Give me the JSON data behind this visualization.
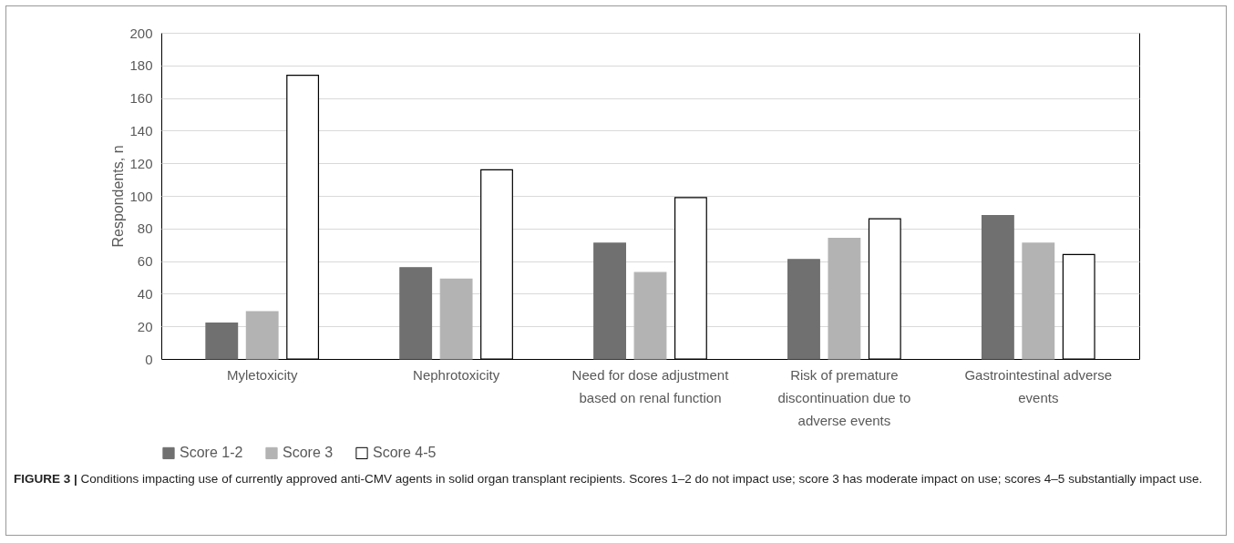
{
  "chart_data": {
    "type": "bar",
    "ylabel": "Respondents, n",
    "categories": [
      "Myletoxicity",
      "Nephrotoxicity",
      "Need for dose adjustment based on renal function",
      "Risk of premature discontinuation due to adverse events",
      "Gastrointestinal adverse events"
    ],
    "series": [
      {
        "name": "Score 1-2",
        "color": "#707070",
        "values": [
          22,
          56,
          71,
          61,
          88
        ]
      },
      {
        "name": "Score 3",
        "color": "#b3b3b3",
        "values": [
          29,
          49,
          53,
          74,
          71
        ]
      },
      {
        "name": "Score 4-5",
        "color": "#ffffff",
        "values": [
          174,
          116,
          99,
          86,
          64
        ]
      }
    ],
    "ylim": [
      0,
      200
    ],
    "yticks": [
      0,
      20,
      40,
      60,
      80,
      100,
      120,
      140,
      160,
      180,
      200
    ],
    "grid": "y",
    "legend": "bottom",
    "annotations": [
      "FIGURE 3 | Conditions impacting use of currently approved anti-CMV agents in solid organ transplant recipients. Scores 1–2 do not impact use; score 3 has moderate impact on use; scores 4–5 substantially impact use."
    ]
  }
}
